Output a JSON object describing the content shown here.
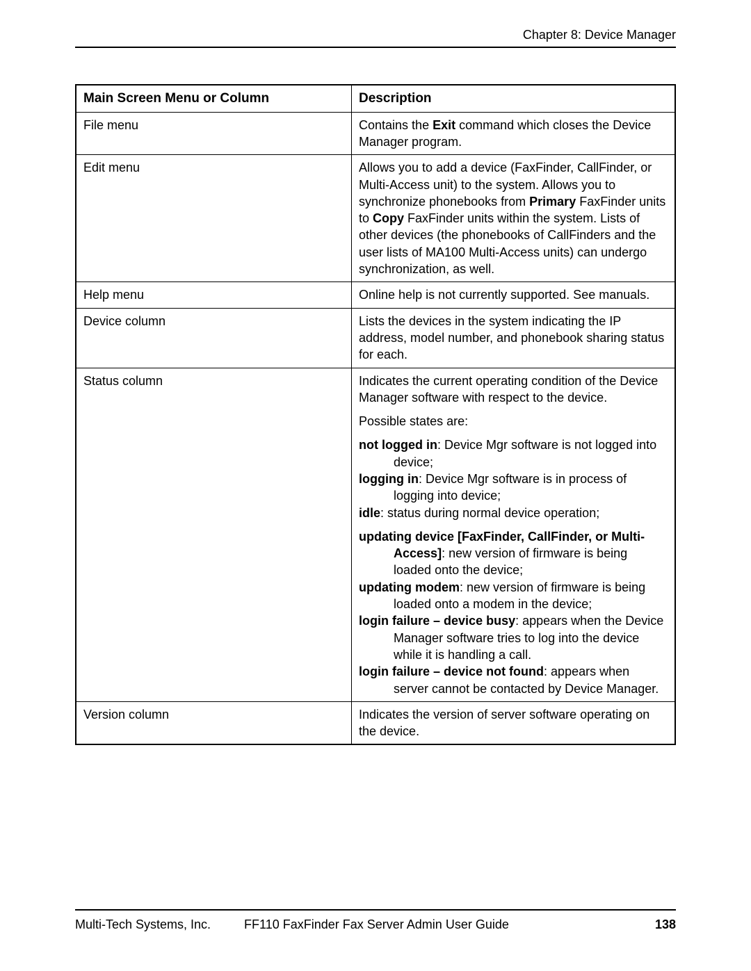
{
  "header": {
    "chapter": "Chapter 8: Device Manager"
  },
  "table": {
    "col1_header": "Main Screen Menu or Column",
    "col2_header": "Description",
    "rows": {
      "file_menu": {
        "label": "File menu",
        "desc_pre": "Contains the ",
        "desc_bold": "Exit",
        "desc_post": " command which closes the Device Manager program."
      },
      "edit_menu": {
        "label": "Edit menu",
        "desc_pre": "Allows you to add a device (FaxFinder, CallFinder, or Multi-Access unit) to the system.  Allows you to synchronize phonebooks from ",
        "desc_bold1": "Primary",
        "desc_mid": " FaxFinder units to ",
        "desc_bold2": "Copy",
        "desc_post": " FaxFinder units within the system. Lists of other devices (the phonebooks of CallFinders and the user lists of MA100 Multi-Access units) can undergo synchronization, as well."
      },
      "help_menu": {
        "label": "Help menu",
        "desc": "Online help is not currently supported. See manuals."
      },
      "device_col": {
        "label": "Device column",
        "desc": "Lists the devices in the system indicating the IP address, model number, and phonebook sharing status for each."
      },
      "status_col": {
        "label": "Status column",
        "intro": "Indicates the current operating condition of the Device Manager software with respect to the device.",
        "possible": "Possible states are:",
        "s1_b": "not logged in",
        "s1_t": ": Device Mgr software is not logged into device;",
        "s2_b": "logging in",
        "s2_t": ": Device Mgr software is in process of logging into device;",
        "s3_b": "idle",
        "s3_t": ": status during normal device operation;",
        "u1_b": "updating device [FaxFinder, CallFinder, or Multi-Access]",
        "u1_t": ":  new version of firmware is being loaded onto the device;",
        "u2_b": "updating modem",
        "u2_t": ":  new version of firmware is being loaded onto a modem in the device;",
        "u3_b": "login failure – device busy",
        "u3_t": ": appears when the Device Manager software tries to log into the device while it is handling a call.",
        "u4_b": "login failure – device not found",
        "u4_t": ":  appears when server cannot be contacted by Device Manager."
      },
      "version_col": {
        "label": "Version column",
        "desc": "Indicates the version of server software operating on the device."
      }
    }
  },
  "footer": {
    "company": "Multi-Tech Systems, Inc.",
    "title": "FF110 FaxFinder Fax Server Admin User Guide",
    "page": "138"
  }
}
